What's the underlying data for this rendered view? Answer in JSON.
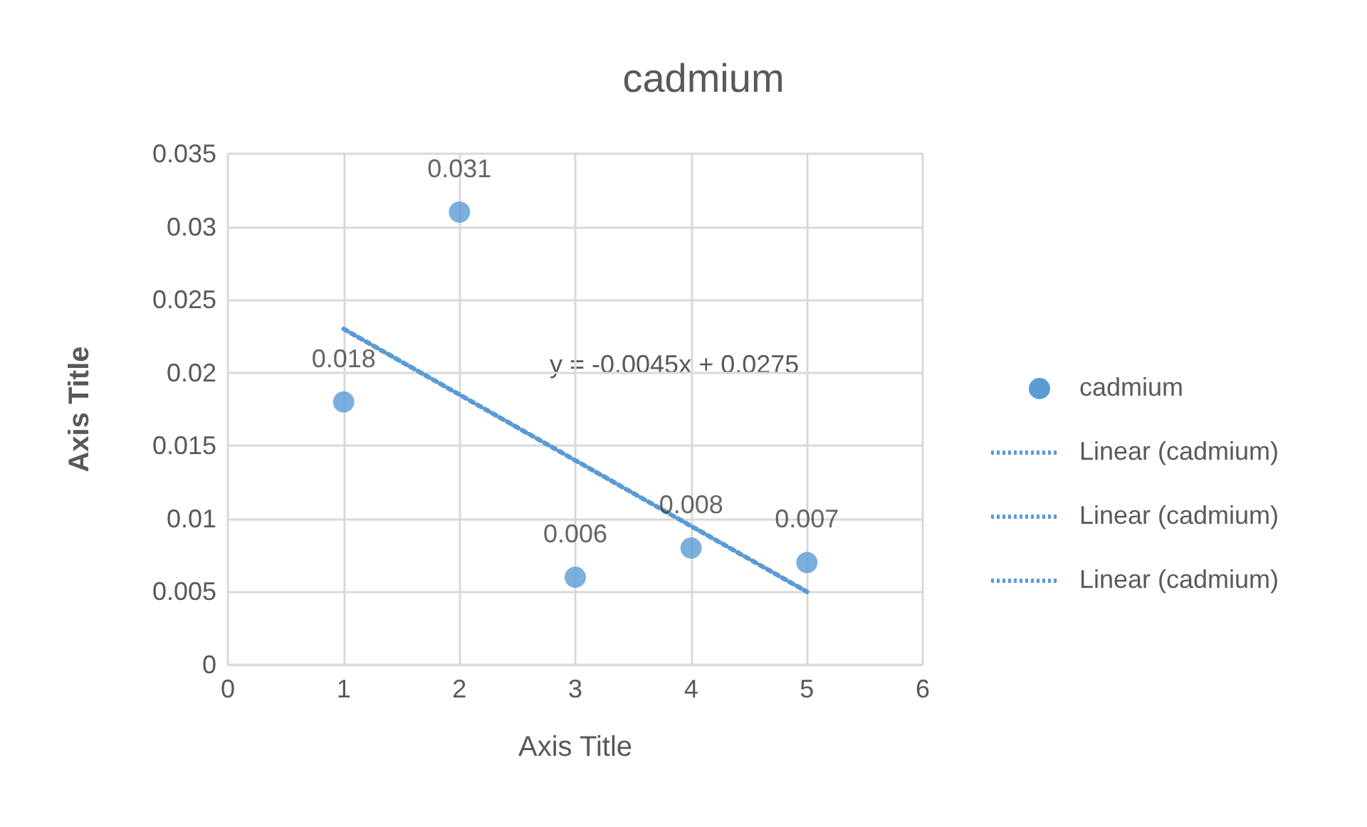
{
  "chart_data": {
    "type": "scatter",
    "title": "cadmium",
    "xlabel": "Axis Title",
    "ylabel": "Axis Title",
    "annotations": [
      "y = -0.0045x + 0.0275"
    ],
    "xlim": [
      0,
      6
    ],
    "xticks": [
      0,
      1,
      2,
      3,
      4,
      5,
      6
    ],
    "ylim": [
      0,
      0.035
    ],
    "yticks": [
      0,
      0.005,
      0.01,
      0.015,
      0.02,
      0.025,
      0.03,
      0.035
    ],
    "grid": true,
    "legend": "right",
    "series": [
      {
        "name": "cadmium",
        "color": "#5b9bd5",
        "marker": "circle",
        "x": [
          1,
          2,
          3,
          4,
          5
        ],
        "values": [
          0.018,
          0.031,
          0.006,
          0.008,
          0.007
        ],
        "data_labels": true
      },
      {
        "name": "Linear (cadmium)",
        "type": "line",
        "color": "#5b9bd5",
        "marker": "none",
        "line_style": "dotted",
        "x": [
          1,
          5
        ],
        "values": [
          0.023,
          0.005
        ]
      },
      {
        "name": "Linear (cadmium)",
        "type": "line",
        "color": "#5b9bd5",
        "marker": "none",
        "line_style": "dotted",
        "x": [
          1,
          5
        ],
        "values": [
          0.023,
          0.005
        ]
      },
      {
        "name": "Linear (cadmium)",
        "type": "line",
        "color": "#5b9bd5",
        "marker": "none",
        "line_style": "dotted",
        "x": [
          1,
          5
        ],
        "values": [
          0.023,
          0.005
        ]
      }
    ]
  }
}
